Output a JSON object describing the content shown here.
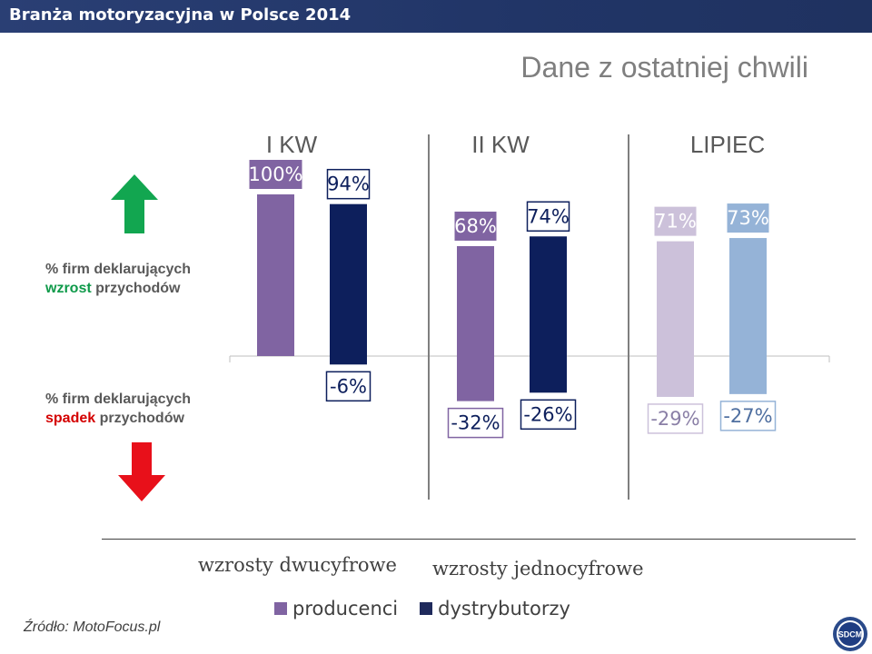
{
  "header": {
    "title": "Branża  motoryzacyjna w Polsce 2014"
  },
  "subtitle": "Dane z ostatniej chwili",
  "side_labels": {
    "up": {
      "line1": "% firm deklarujących",
      "accent": "wzrost",
      "rest": " przychodów"
    },
    "down": {
      "line1": "% firm deklarujących",
      "accent": "spadek",
      "rest": " przychodów"
    }
  },
  "captions": {
    "double": "wzrosty dwucyfrowe",
    "single": "wzrosty jednocyfrowe"
  },
  "legend": [
    {
      "label": "producenci",
      "color": "#8064a2"
    },
    {
      "label": "dystrybutorzy",
      "color": "#1f2a5c"
    }
  ],
  "source": "Źródło: MotoFocus.pl",
  "logo_text": "SDCM",
  "colors": {
    "up_arrow": "#12a650",
    "down_arrow": "#e8101a"
  },
  "chart_data": {
    "type": "bar",
    "categories": [
      "I KW",
      "II KW",
      "LIPIEC"
    ],
    "series": [
      {
        "name": "producenci",
        "up": [
          100,
          68,
          71
        ],
        "down": [
          null,
          -32,
          -29
        ]
      },
      {
        "name": "dystrybutorzy",
        "up": [
          94,
          74,
          73
        ],
        "down": [
          -6,
          -26,
          -27
        ]
      }
    ],
    "series_colors": {
      "I KW": [
        "#8064a2",
        "#0d1f5c"
      ],
      "II KW": [
        "#8064a2",
        "#0d1f5c"
      ],
      "LIPIEC": [
        "#ccc1da",
        "#95b3d7"
      ]
    },
    "labels": {
      "up": [
        [
          "100%",
          "94%"
        ],
        [
          "68%",
          "74%"
        ],
        [
          "71%",
          "73%"
        ]
      ],
      "down": [
        [
          null,
          "-6%"
        ],
        [
          "-32%",
          "-26%"
        ],
        [
          "-29%",
          "-27%"
        ]
      ]
    },
    "ylim": [
      -40,
      100
    ],
    "legend_position": "bottom"
  }
}
